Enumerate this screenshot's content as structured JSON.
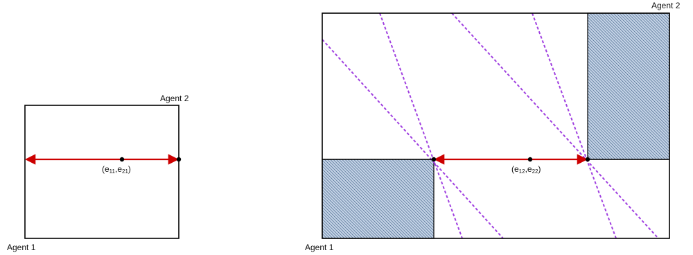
{
  "diagrams": [
    {
      "agent1_label": "Agent 1",
      "agent2_label": "Agent 2",
      "point_label": {
        "prefix": "(e",
        "sub1": "11",
        "mid": ",e",
        "sub2": "21",
        "suffix": ")"
      }
    },
    {
      "agent1_label": "Agent 1",
      "agent2_label": "Agent 2",
      "point_label": {
        "prefix": "(e",
        "sub1": "12",
        "mid": ",e",
        "sub2": "22",
        "suffix": ")"
      }
    }
  ],
  "colors": {
    "box_border": "#000000",
    "arrow": "#cc0000",
    "dashed_lines": "#a040e0",
    "hatch_fill": "#c4d3e6",
    "hatch_lines": "#2c4f78",
    "points": "#000000"
  }
}
